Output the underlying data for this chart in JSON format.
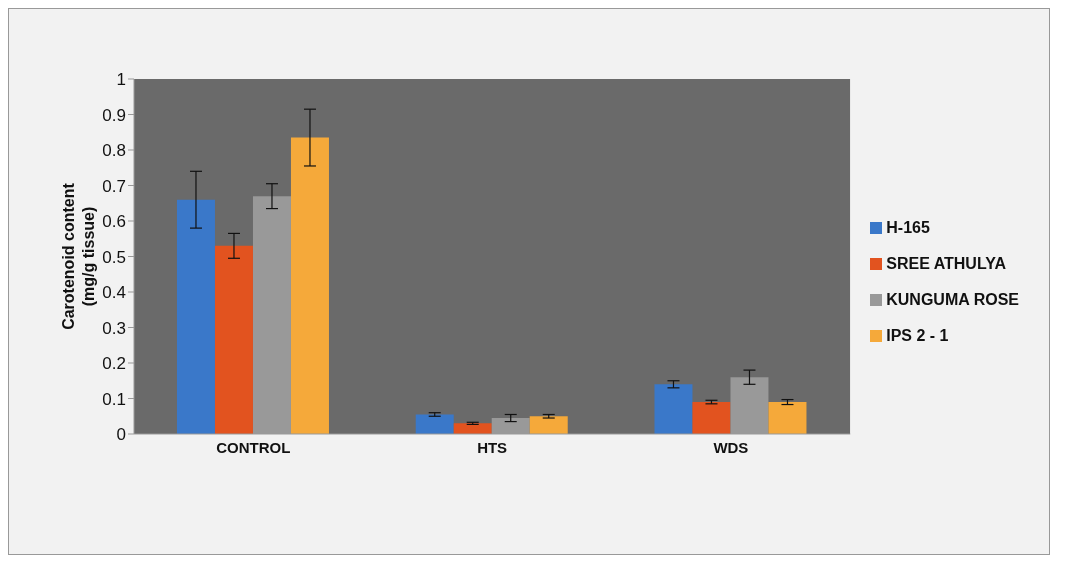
{
  "chart_data": {
    "type": "bar",
    "ylabel": "Carotenoid content (mg/g tissue)",
    "categories": [
      "CONTROL",
      "HTS",
      "WDS"
    ],
    "series": [
      {
        "name": "H-165",
        "color": "#3a78c9",
        "values": [
          0.66,
          0.055,
          0.14
        ],
        "errors": [
          0.08,
          0.005,
          0.01
        ]
      },
      {
        "name": "SREE ATHULYA",
        "color": "#e2531f",
        "values": [
          0.53,
          0.03,
          0.09
        ],
        "errors": [
          0.035,
          0.003,
          0.005
        ]
      },
      {
        "name": "KUNGUMA ROSE",
        "color": "#999999",
        "values": [
          0.67,
          0.045,
          0.16
        ],
        "errors": [
          0.035,
          0.01,
          0.02
        ]
      },
      {
        "name": "IPS 2 - 1",
        "color": "#f5a93a",
        "values": [
          0.835,
          0.05,
          0.09
        ],
        "errors": [
          0.08,
          0.005,
          0.007
        ]
      }
    ],
    "ylim": [
      0,
      1
    ],
    "yticks": [
      0,
      0.1,
      0.2,
      0.3,
      0.4,
      0.5,
      0.6,
      0.7,
      0.8,
      0.9,
      1
    ],
    "grid": false,
    "legend": "right"
  }
}
